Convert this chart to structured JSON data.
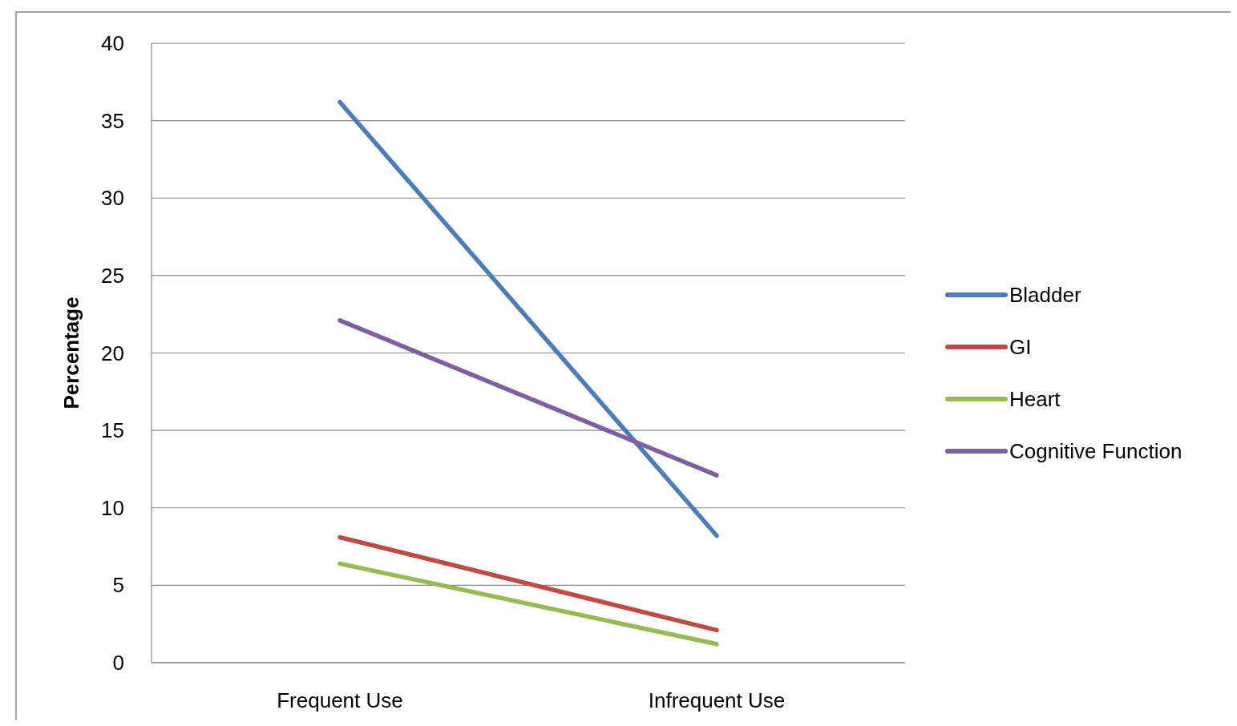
{
  "chart_data": {
    "type": "line",
    "ylabel": "Percentage",
    "categories": [
      "Frequent Use",
      "Infrequent Use"
    ],
    "series": [
      {
        "name": "Bladder",
        "color": "#4a7ebb",
        "values": [
          36.2,
          8.2
        ]
      },
      {
        "name": "GI",
        "color": "#be4b48",
        "values": [
          8.1,
          2.1
        ]
      },
      {
        "name": "Heart",
        "color": "#98b954",
        "values": [
          6.4,
          1.2
        ]
      },
      {
        "name": "Cognitive Function",
        "color": "#7d60a0",
        "values": [
          22.1,
          12.1
        ]
      }
    ],
    "ylim": [
      0,
      40
    ],
    "yticks": [
      0,
      5,
      10,
      15,
      20,
      25,
      30,
      35,
      40
    ],
    "grid": "y",
    "legend": "right",
    "marker": "none",
    "line_style": "solid"
  }
}
